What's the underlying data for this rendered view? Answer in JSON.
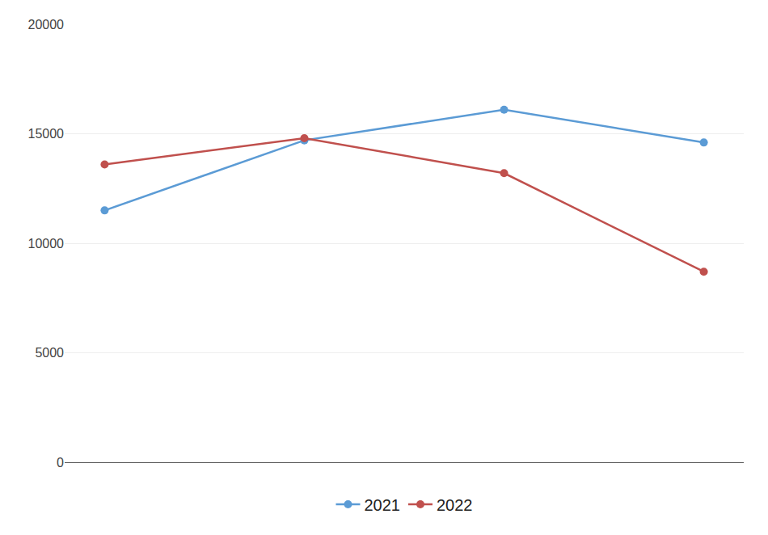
{
  "chart_data": {
    "type": "line",
    "categories": [
      null,
      null,
      null,
      null
    ],
    "series": [
      {
        "name": "2021",
        "color": "#5b9bd5",
        "marker": "circle",
        "values": [
          11500,
          14700,
          16100,
          14600
        ]
      },
      {
        "name": "2022",
        "color": "#c0504d",
        "marker": "circle",
        "values": [
          13600,
          14800,
          13200,
          8700
        ]
      }
    ],
    "ylim": [
      0,
      20000
    ],
    "yticks": [
      0,
      5000,
      10000,
      15000,
      20000
    ],
    "grid": true,
    "legend": "bottom",
    "tick_labels": "y"
  }
}
